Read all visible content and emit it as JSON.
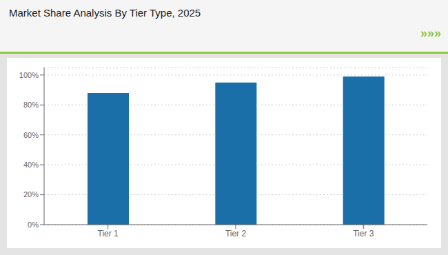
{
  "chart_data": {
    "type": "bar",
    "title": "Market Share Analysis By Tier Type, 2025",
    "categories": [
      "Tier 1",
      "Tier 2",
      "Tier 3"
    ],
    "values": [
      88,
      95,
      99
    ],
    "color": "#1a6fa8",
    "ylim": [
      0,
      105
    ],
    "yticks": [
      {
        "value": 0,
        "label": "0%"
      },
      {
        "value": 20,
        "label": "20%"
      },
      {
        "value": 40,
        "label": "40%"
      },
      {
        "value": 60,
        "label": "60%"
      },
      {
        "value": 80,
        "label": "80%"
      },
      {
        "value": 100,
        "label": "100%"
      }
    ],
    "grid": true,
    "annotations": [
      "»»»"
    ]
  }
}
